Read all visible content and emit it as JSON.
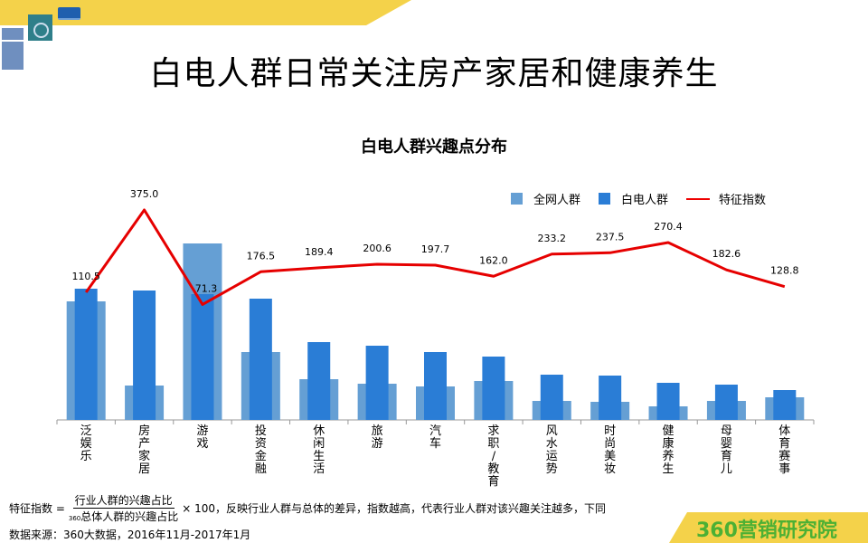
{
  "header": {
    "title": "白电人群日常关注房产家居和健康养生",
    "banner_color": "#f4d24a"
  },
  "icons": [
    "air-conditioner-icon",
    "washing-machine-icon",
    "refrigerator-icon"
  ],
  "chart_data": {
    "type": "bar+line",
    "title": "白电人群兴趣点分布",
    "categories": [
      "泛娱乐",
      "房产家居",
      "游戏",
      "投资金融",
      "休闲生活",
      "旅游",
      "汽车",
      "求职/教育",
      "风水运势",
      "时尚美妆",
      "健康养生",
      "母婴育儿",
      "体育赛事"
    ],
    "series": [
      {
        "name": "全网人群",
        "type": "bar",
        "color": "#659fd4",
        "values": [
          131,
          38,
          195,
          75,
          45,
          40,
          37,
          43,
          21,
          20,
          15,
          21,
          25
        ]
      },
      {
        "name": "白电人群",
        "type": "bar",
        "color": "#2a7dd6",
        "values": [
          145,
          143,
          139,
          134,
          86,
          82,
          75,
          70,
          50,
          49,
          41,
          39,
          33
        ]
      },
      {
        "name": "特征指数",
        "type": "line",
        "color": "#e60000",
        "values": [
          110.5,
          375.0,
          71.3,
          176.5,
          189.4,
          200.6,
          197.7,
          162.0,
          233.2,
          237.5,
          270.4,
          182.6,
          128.8
        ]
      }
    ],
    "data_labels": [
      "110.5",
      "375.0",
      "71.3",
      "176.5",
      "189.4",
      "200.6",
      "197.7",
      "162.0",
      "233.2",
      "237.5",
      "270.4",
      "182.6",
      "128.8"
    ],
    "bar_value_note": "relative share, unlabeled axis",
    "legend_position": "top-right",
    "grid": false
  },
  "legend": {
    "a": "全网人群",
    "b": "白电人群",
    "c": "特征指数"
  },
  "footer": {
    "prefix": "特征指数 =",
    "numerator": "行业人群的兴趣占比",
    "den_small": "360",
    "denominator": "总体人群的兴趣占比",
    "suffix": "× 100，反映行业人群与总体的差异，指数越高，代表行业人群对该兴趣关注越多，下同",
    "source": "数据来源：360大数据，2016年11月-2017年1月",
    "logo": "360营销研究院"
  }
}
